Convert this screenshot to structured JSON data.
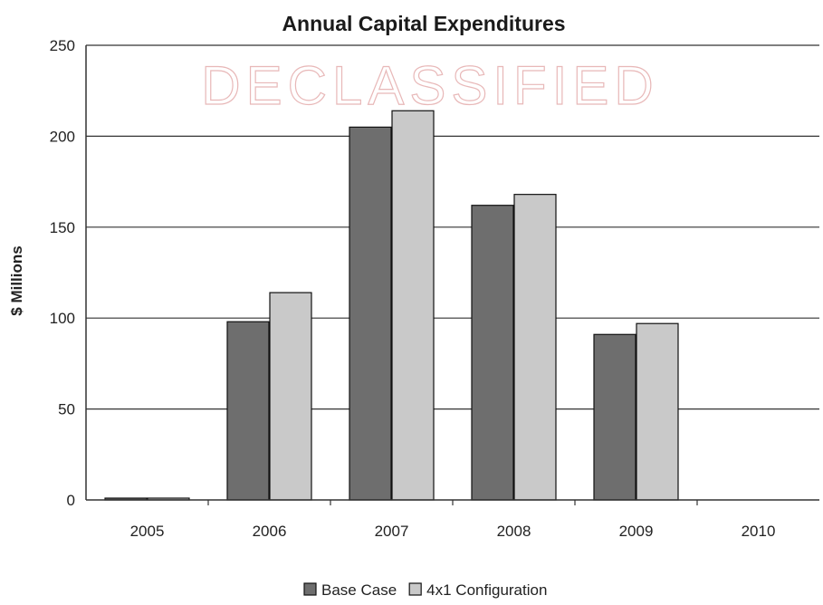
{
  "chart_data": {
    "type": "bar",
    "title": "Annual Capital Expenditures",
    "ylabel": "$ Millions",
    "xlabel": "",
    "categories": [
      "2005",
      "2006",
      "2007",
      "2008",
      "2009",
      "2010"
    ],
    "series": [
      {
        "name": "Base Case",
        "values": [
          1,
          98,
          205,
          162,
          91,
          0
        ],
        "color": "#6e6e6e"
      },
      {
        "name": "4x1 Configuration",
        "values": [
          1,
          114,
          214,
          168,
          97,
          0
        ],
        "color": "#c9c9c9"
      }
    ],
    "ylim": [
      0,
      250
    ],
    "yticks": [
      0,
      50,
      100,
      150,
      200,
      250
    ],
    "grid": true,
    "legend_position": "bottom"
  },
  "watermark": "DECLASSIFIED"
}
